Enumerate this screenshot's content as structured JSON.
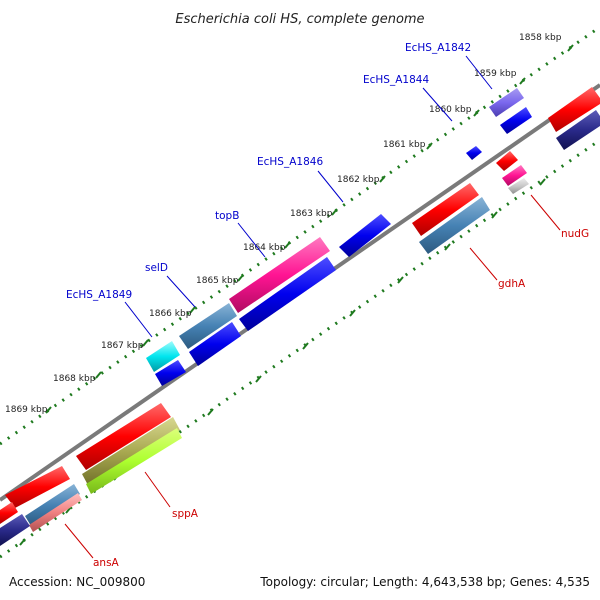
{
  "header": {
    "title": "Escherichia coli HS, complete genome"
  },
  "footer": {
    "accession": "Accession: NC_009800",
    "topology": "Topology: circular; Length: 4,643,538 bp; Genes: 4,535"
  },
  "ticks": [
    "1858 kbp",
    "1859 kbp",
    "1860 kbp",
    "1861 kbp",
    "1862 kbp",
    "1863 kbp",
    "1864 kbp",
    "1865 kbp",
    "1866 kbp",
    "1867 kbp",
    "1868 kbp",
    "1869 kbp"
  ],
  "genes_top": [
    "EcHS_A1842",
    "EcHS_A1844",
    "EcHS_A1846",
    "topB",
    "selD",
    "EcHS_A1849"
  ],
  "genes_bottom": [
    "nudG",
    "gdhA",
    "sppA",
    "ansA"
  ],
  "colors": {
    "forward_label": "#0000cc",
    "reverse_label": "#cc0000",
    "backbone": "#777777",
    "tick_dots": "#1a7a1a"
  }
}
